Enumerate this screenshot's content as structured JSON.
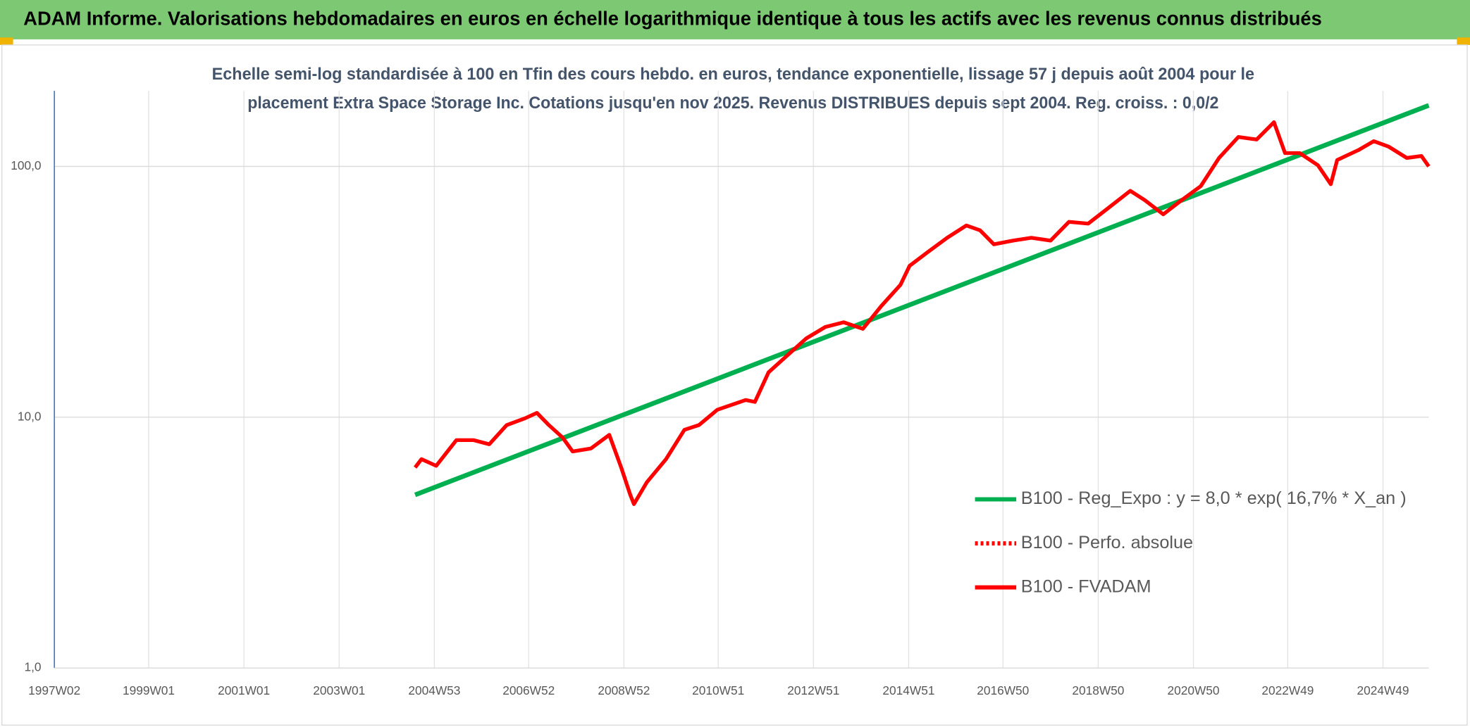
{
  "chart_data": {
    "type": "line",
    "title": "ADAM Informe. Valorisations hebdomadaires en euros en échelle logarithmique identique à tous les actifs avec les revenus connus distribués",
    "subtitle": [
      "Echelle semi-log standardisée à 100 en Tfin des cours hebdo. en euros, tendance exponentielle, lissage 57 j depuis août 2004 pour le",
      "placement Extra Space Storage Inc. Cotations jusqu'en nov 2025. Revenus DISTRIBUES depuis sept 2004. Reg. croiss. : 0,0/2"
    ],
    "yscale": "log",
    "ylim": [
      1,
      200
    ],
    "yticks": [
      {
        "value": 1,
        "label": "1,0"
      },
      {
        "value": 10,
        "label": "10,0"
      },
      {
        "value": 100,
        "label": "100,0"
      }
    ],
    "xlim": [
      "1997W02",
      "2025W47"
    ],
    "xticks": [
      "1997W02",
      "1999W01",
      "2001W01",
      "2003W01",
      "2004W53",
      "2006W52",
      "2008W52",
      "2010W51",
      "2012W51",
      "2014W51",
      "2016W50",
      "2018W50",
      "2020W50",
      "2022W49",
      "2024W49"
    ],
    "grid": true,
    "legend": "lower right",
    "series": [
      {
        "name": "B100 - Reg_Expo : y = 8,0 * exp( 16,7% *  X_an )",
        "color": "#00b050",
        "style": "solid",
        "x": [
          "2004W32",
          "2025W47"
        ],
        "values": [
          4.9,
          175
        ]
      },
      {
        "name": "B100 - Perfo. absolue",
        "color": "#ff0000",
        "style": "dotted",
        "x": [],
        "values": []
      },
      {
        "name": "B100 - FVADAM",
        "color": "#ff0000",
        "style": "solid",
        "x": [
          "2004W32",
          "2004W39",
          "2005W03",
          "2005W25",
          "2005W44",
          "2006W09",
          "2006W28",
          "2006W48",
          "2007W09",
          "2007W22",
          "2007W37",
          "2007W48",
          "2008W16",
          "2008W36",
          "2008W49",
          "2009W07",
          "2009W11",
          "2009W25",
          "2009W46",
          "2010W14",
          "2010W30",
          "2010W50",
          "2011W29",
          "2011W39",
          "2012W02",
          "2012W23",
          "2012W43",
          "2013W12",
          "2013W32",
          "2014W01",
          "2014W21",
          "2014W42",
          "2014W52",
          "2015W20",
          "2015W41",
          "2016W10",
          "2016W25",
          "2016W40",
          "2017W09",
          "2017W29",
          "2017W50",
          "2018W18",
          "2018W39",
          "2019W07",
          "2019W33",
          "2019W49",
          "2020W17",
          "2020W37",
          "2021W06",
          "2021W26",
          "2021W47",
          "2022W15",
          "2022W34",
          "2022W46",
          "2023W10",
          "2023W30",
          "2023W44",
          "2023W51",
          "2024W22",
          "2024W39",
          "2025W03",
          "2025W23",
          "2025W39",
          "2025W47"
        ],
        "values": [
          6.3,
          6.8,
          6.4,
          8.1,
          8.1,
          7.8,
          9.3,
          9.9,
          10.4,
          9.3,
          8.3,
          7.3,
          7.5,
          8.5,
          6.3,
          4.9,
          4.5,
          5.5,
          6.8,
          8.9,
          9.3,
          10.7,
          11.7,
          11.5,
          15.1,
          17.7,
          20.6,
          22.9,
          23.9,
          22.5,
          27.7,
          33.7,
          40.1,
          45.6,
          51.9,
          58.1,
          55.6,
          48.9,
          50.6,
          51.9,
          50.6,
          60.1,
          59.1,
          67.3,
          79.9,
          73.3,
          64.4,
          73.3,
          83.4,
          108,
          131,
          128,
          150,
          113,
          113,
          101,
          84.9,
          106,
          116,
          126,
          120,
          108,
          110,
          100
        ]
      }
    ]
  }
}
